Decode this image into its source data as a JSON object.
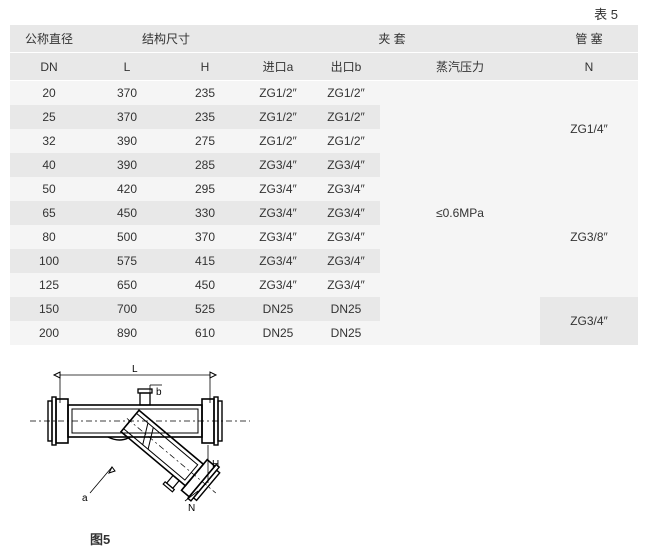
{
  "tableLabel": "表 5",
  "header": {
    "group": {
      "diameter": "公称直径",
      "structure": "结构尺寸",
      "jacket": "夹       套",
      "plug": "管  塞"
    },
    "sub": {
      "dn": "DN",
      "l": "L",
      "h": "H",
      "a": "进口a",
      "b": "出口b",
      "pressure": "蒸汽压力",
      "n": "N"
    }
  },
  "rows": [
    {
      "dn": "20",
      "l": "370",
      "h": "235",
      "a": "ZG1/2″",
      "b": "ZG1/2″"
    },
    {
      "dn": "25",
      "l": "370",
      "h": "235",
      "a": "ZG1/2″",
      "b": "ZG1/2″"
    },
    {
      "dn": "32",
      "l": "390",
      "h": "275",
      "a": "ZG1/2″",
      "b": "ZG1/2″"
    },
    {
      "dn": "40",
      "l": "390",
      "h": "285",
      "a": "ZG3/4″",
      "b": "ZG3/4″"
    },
    {
      "dn": "50",
      "l": "420",
      "h": "295",
      "a": "ZG3/4″",
      "b": "ZG3/4″"
    },
    {
      "dn": "65",
      "l": "450",
      "h": "330",
      "a": "ZG3/4″",
      "b": "ZG3/4″"
    },
    {
      "dn": "80",
      "l": "500",
      "h": "370",
      "a": "ZG3/4″",
      "b": "ZG3/4″"
    },
    {
      "dn": "100",
      "l": "575",
      "h": "415",
      "a": "ZG3/4″",
      "b": "ZG3/4″"
    },
    {
      "dn": "125",
      "l": "650",
      "h": "450",
      "a": "ZG3/4″",
      "b": "ZG3/4″"
    },
    {
      "dn": "150",
      "l": "700",
      "h": "525",
      "a": "DN25",
      "b": "DN25"
    },
    {
      "dn": "200",
      "l": "890",
      "h": "610",
      "a": "DN25",
      "b": "DN25"
    }
  ],
  "pressure": "≤0.6MPa",
  "plugGroups": [
    {
      "span": 4,
      "value": "ZG1/4″"
    },
    {
      "span": 5,
      "value": "ZG3/8″"
    },
    {
      "span": 2,
      "value": "ZG3/4″"
    }
  ],
  "diagram": {
    "labels": {
      "L": "L",
      "b": "b",
      "a": "a",
      "H": "H",
      "N": "N"
    }
  },
  "figureLabel": "图5"
}
